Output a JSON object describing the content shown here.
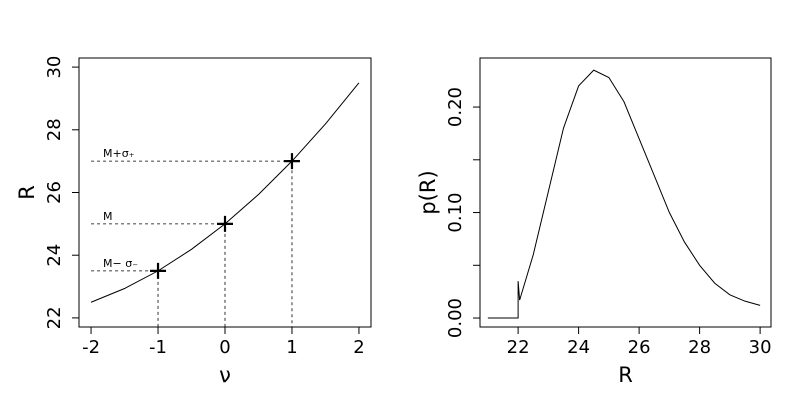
{
  "chart_data": [
    {
      "type": "line",
      "xlabel": "ν",
      "ylabel": "R",
      "xlim": [
        -2.18,
        2.18
      ],
      "ylim": [
        21.71,
        30.29
      ],
      "xticks": [
        -2,
        -1,
        0,
        1,
        2
      ],
      "yticks": [
        22,
        24,
        26,
        28,
        30
      ],
      "color": "#000000",
      "curve": {
        "x": [
          -2,
          -1.5,
          -1,
          -0.5,
          0,
          0.5,
          1,
          1.5,
          2
        ],
        "values": [
          22.5,
          22.9375,
          23.5,
          24.1875,
          25,
          25.9375,
          27,
          28.1875,
          29.5
        ]
      },
      "points": {
        "x": [
          -1,
          0,
          1
        ],
        "values": [
          23.5,
          25,
          27
        ],
        "labels": [
          "M− σ₋",
          "M",
          "M+σ₊"
        ]
      }
    },
    {
      "type": "line",
      "xlabel": "R",
      "ylabel": "p(R)",
      "xlim": [
        20.74,
        30.36
      ],
      "ylim": [
        -0.0085,
        0.2465
      ],
      "xticks": [
        22,
        24,
        26,
        28,
        30
      ],
      "yticks": [
        {
          "value": 0,
          "label": "0.00"
        },
        {
          "value": 0.1,
          "label": "0.10"
        },
        {
          "value": 0.2,
          "label": "0.20"
        }
      ],
      "yminor_ticks": [
        0.05,
        0.15
      ],
      "color": "#000000",
      "curve": {
        "x": [
          21,
          22,
          22,
          22.05,
          22.5,
          23,
          23.5,
          24,
          24.5,
          25,
          25.5,
          26,
          26.5,
          27,
          27.5,
          28,
          28.5,
          29,
          29.5,
          30
        ],
        "values": [
          0,
          0,
          0.035,
          0.017,
          0.06,
          0.12,
          0.18,
          0.22,
          0.235,
          0.228,
          0.205,
          0.17,
          0.135,
          0.1,
          0.072,
          0.05,
          0.033,
          0.022,
          0.016,
          0.012
        ]
      }
    }
  ]
}
